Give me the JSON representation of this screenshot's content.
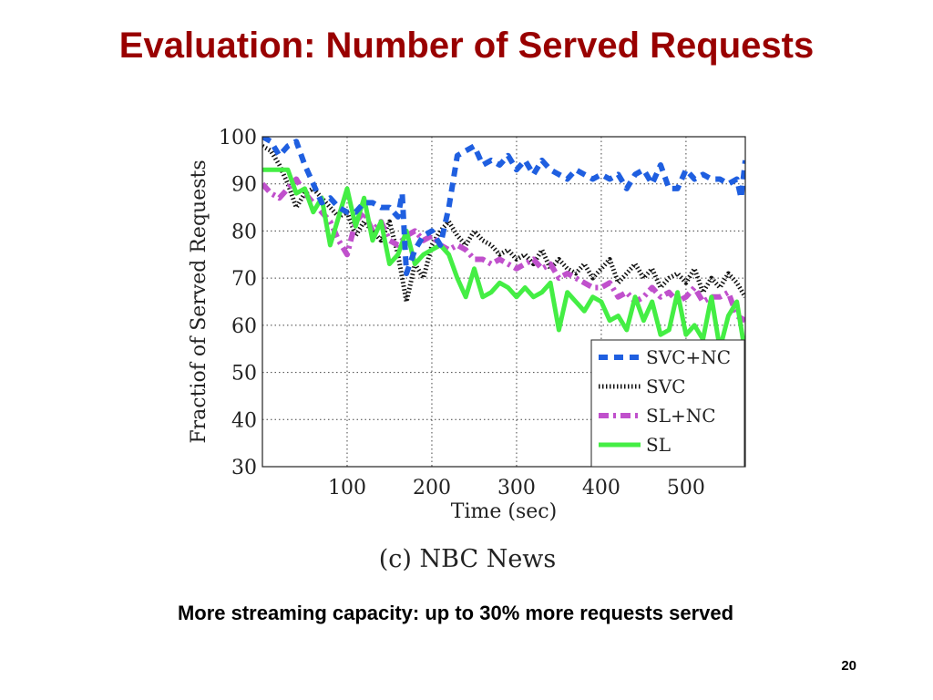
{
  "slide": {
    "title": "Evaluation: Number of Served Requests",
    "caption": "More streaming capacity: up to 30% more requests served",
    "page_number": "20"
  },
  "chart_data": {
    "type": "line",
    "title": "",
    "subtitle": "(c) NBC News",
    "xlabel": "Time (sec)",
    "ylabel": "Fractiof of Served Requests",
    "xlim": [
      0,
      570
    ],
    "ylim": [
      30,
      100
    ],
    "xticks": [
      100,
      200,
      300,
      400,
      500
    ],
    "yticks": [
      30,
      40,
      50,
      60,
      70,
      80,
      90,
      100
    ],
    "grid": true,
    "legend_position": "lower-right",
    "series": [
      {
        "name": "SVC+NC",
        "color": "#1f5fe0",
        "dash": "dashed",
        "x": [
          0,
          10,
          20,
          30,
          40,
          50,
          60,
          70,
          80,
          90,
          100,
          110,
          120,
          130,
          140,
          150,
          160,
          165,
          170,
          180,
          190,
          200,
          210,
          220,
          230,
          240,
          250,
          260,
          270,
          280,
          290,
          300,
          310,
          320,
          330,
          340,
          350,
          360,
          370,
          380,
          390,
          400,
          410,
          420,
          430,
          440,
          450,
          460,
          470,
          480,
          490,
          500,
          510,
          520,
          530,
          540,
          550,
          560,
          565,
          570
        ],
        "y": [
          100,
          99,
          96,
          98,
          99,
          94,
          90,
          86,
          87,
          85,
          84,
          84,
          86,
          86,
          85,
          85,
          83,
          88,
          71,
          76,
          79,
          80,
          77,
          85,
          96,
          97,
          98,
          94,
          95,
          94,
          96,
          93,
          95,
          92,
          95,
          93,
          92,
          91,
          93,
          92,
          91,
          92,
          91,
          92,
          89,
          92,
          93,
          90,
          94,
          89,
          89,
          93,
          91,
          92,
          91,
          91,
          90,
          91,
          87,
          95
        ]
      },
      {
        "name": "SVC",
        "color": "#111111",
        "dash": "dotted",
        "x": [
          0,
          10,
          20,
          30,
          40,
          50,
          60,
          70,
          80,
          90,
          100,
          110,
          120,
          130,
          140,
          150,
          160,
          170,
          180,
          190,
          200,
          210,
          220,
          230,
          240,
          250,
          260,
          270,
          280,
          290,
          300,
          310,
          320,
          330,
          340,
          350,
          360,
          370,
          380,
          390,
          400,
          410,
          420,
          430,
          440,
          450,
          460,
          470,
          480,
          490,
          500,
          510,
          520,
          530,
          540,
          550,
          560,
          570
        ],
        "y": [
          98,
          97,
          94,
          90,
          85,
          88,
          89,
          87,
          85,
          83,
          84,
          79,
          82,
          80,
          78,
          82,
          75,
          65,
          73,
          70,
          77,
          80,
          82,
          79,
          77,
          80,
          78,
          77,
          75,
          76,
          74,
          75,
          73,
          76,
          72,
          74,
          72,
          71,
          73,
          70,
          72,
          74,
          69,
          71,
          73,
          70,
          72,
          68,
          70,
          71,
          69,
          72,
          67,
          70,
          68,
          71,
          69,
          66
        ]
      },
      {
        "name": "SL+NC",
        "color": "#c050cc",
        "dash": "dash-dot",
        "x": [
          0,
          10,
          20,
          30,
          40,
          50,
          60,
          70,
          80,
          90,
          100,
          110,
          120,
          130,
          140,
          150,
          160,
          170,
          180,
          190,
          200,
          210,
          220,
          230,
          240,
          250,
          260,
          270,
          280,
          290,
          300,
          310,
          320,
          330,
          340,
          350,
          360,
          370,
          380,
          390,
          400,
          410,
          420,
          430,
          440,
          450,
          460,
          470,
          480,
          490,
          500,
          510,
          520,
          530,
          540,
          550,
          560,
          570
        ],
        "y": [
          90,
          88,
          87,
          89,
          91,
          88,
          86,
          84,
          82,
          78,
          75,
          82,
          84,
          80,
          82,
          78,
          77,
          79,
          80,
          78,
          79,
          77,
          76,
          77,
          76,
          74,
          74,
          73,
          74,
          73,
          72,
          73,
          74,
          72,
          73,
          70,
          71,
          70,
          69,
          68,
          68,
          69,
          66,
          67,
          65,
          66,
          68,
          66,
          67,
          65,
          66,
          68,
          65,
          66,
          66,
          67,
          62,
          61
        ]
      },
      {
        "name": "SL",
        "color": "#44ee44",
        "dash": "solid",
        "x": [
          0,
          10,
          20,
          30,
          40,
          50,
          60,
          70,
          80,
          90,
          100,
          110,
          120,
          130,
          140,
          150,
          160,
          170,
          180,
          190,
          200,
          210,
          220,
          230,
          240,
          250,
          260,
          270,
          280,
          290,
          300,
          310,
          320,
          330,
          340,
          350,
          360,
          370,
          380,
          390,
          400,
          410,
          420,
          430,
          440,
          450,
          460,
          470,
          480,
          490,
          500,
          510,
          520,
          530,
          540,
          550,
          560,
          570
        ],
        "y": [
          93,
          93,
          93,
          93,
          88,
          89,
          84,
          87,
          77,
          83,
          89,
          81,
          87,
          78,
          82,
          73,
          75,
          80,
          73,
          75,
          76,
          77,
          75,
          70,
          66,
          72,
          66,
          67,
          69,
          68,
          66,
          68,
          66,
          67,
          69,
          59,
          67,
          65,
          63,
          66,
          65,
          61,
          62,
          59,
          66,
          61,
          65,
          58,
          59,
          67,
          58,
          60,
          57,
          66,
          55,
          62,
          65,
          54
        ]
      }
    ]
  }
}
